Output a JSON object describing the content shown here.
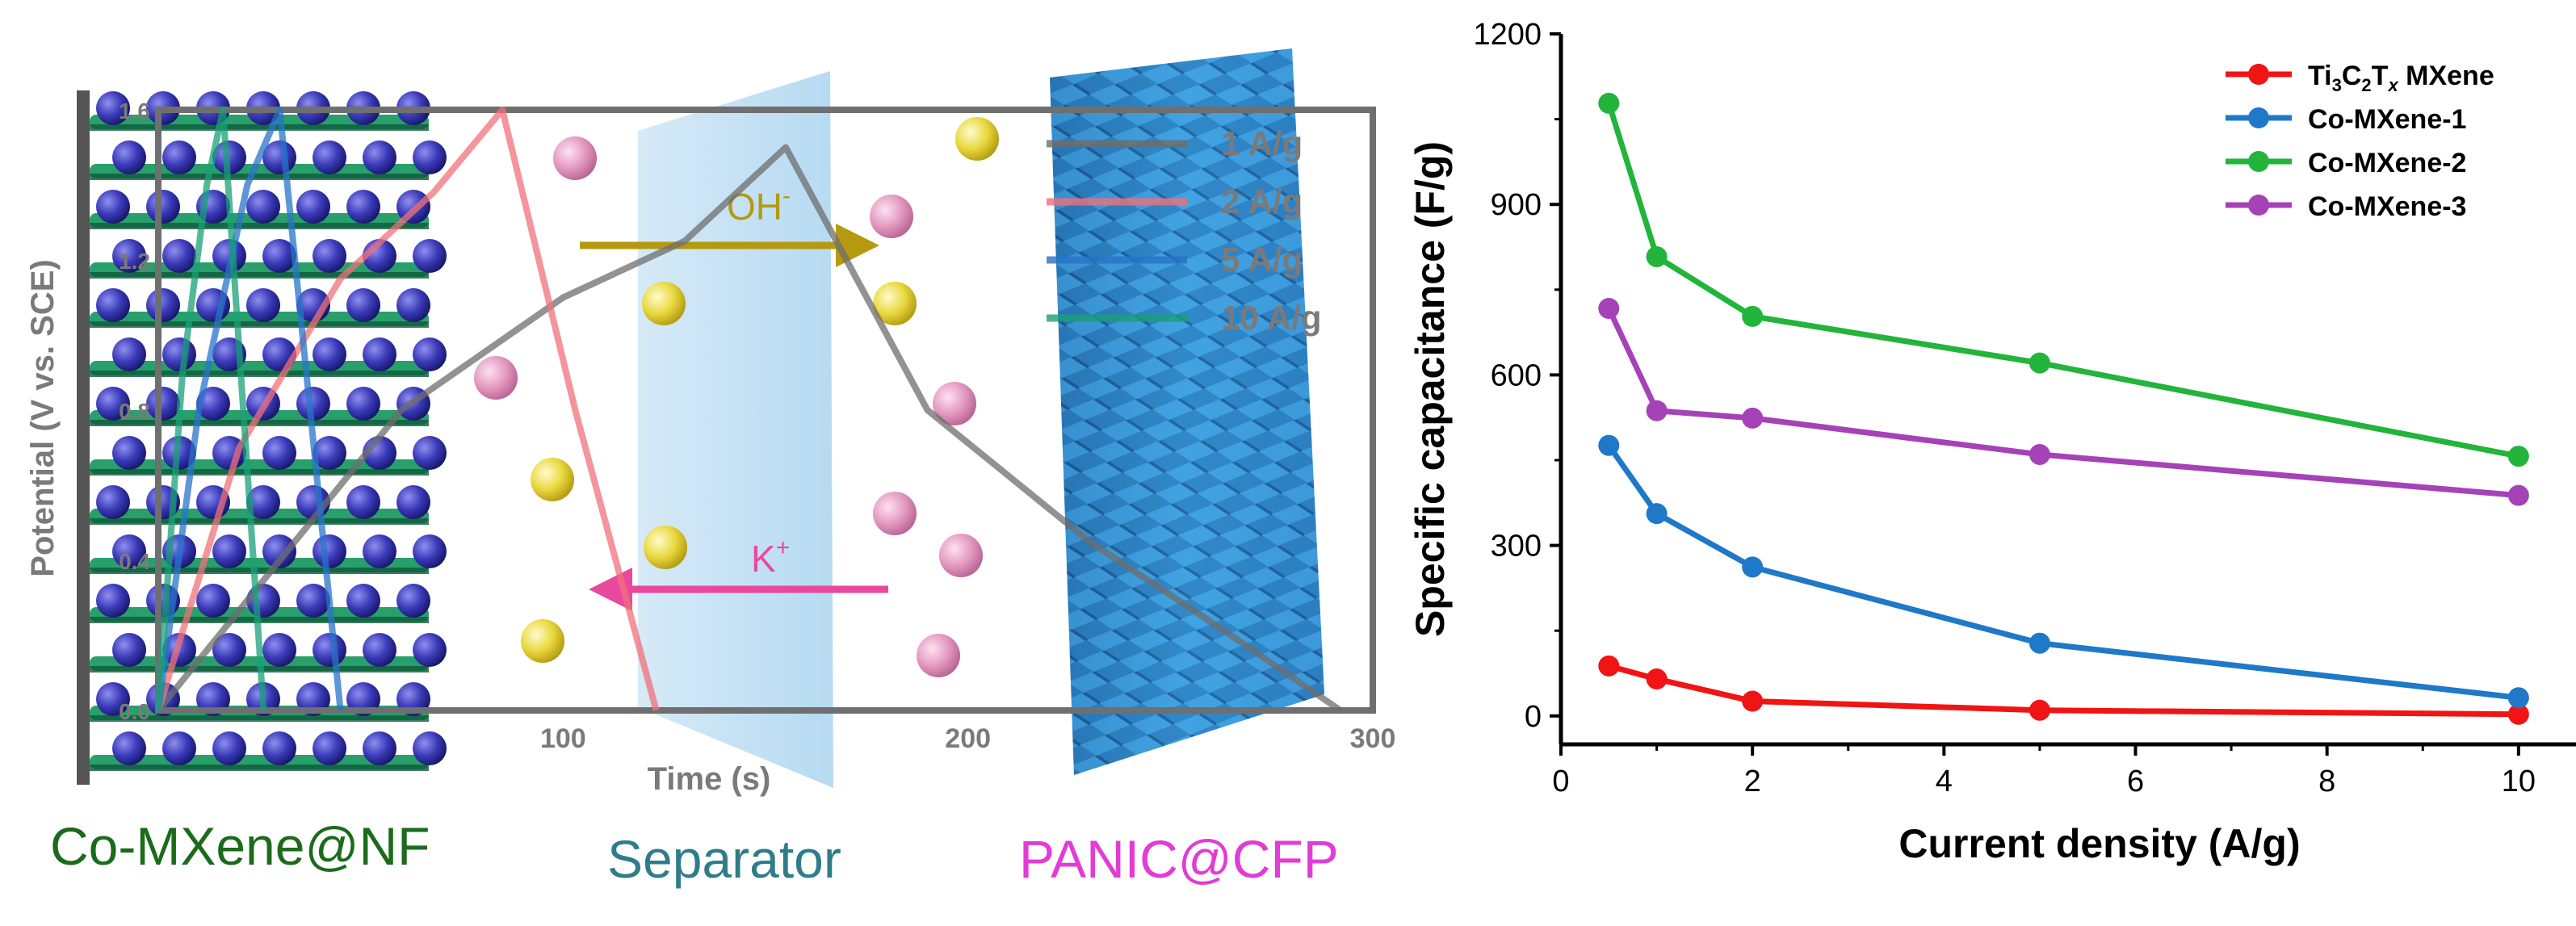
{
  "captions": {
    "anode": "Co-MXene@NF",
    "separator": "Separator",
    "cathode": "PANIC@CFP"
  },
  "ions": {
    "anion": "OH",
    "anion_sup": "-",
    "cation": "K",
    "cation_sup": "+"
  },
  "colors": {
    "anode_green": "#1b6b1b",
    "separator_teal": "#2f7c8a",
    "cathode_magenta": "#e23bd6",
    "ion_arrow_olive": "#b59a10",
    "ion_arrow_pink": "#e8499c"
  },
  "chart_data": [
    {
      "type": "line",
      "xlabel": "Time (s)",
      "ylabel": "Potential (V vs. SCE)",
      "xlim": [
        0,
        300
      ],
      "ylim": [
        0.0,
        1.6
      ],
      "xticks": [
        "100",
        "200",
        "300"
      ],
      "yticks": [
        "0.0",
        "0.4",
        "0.8",
        "1.2",
        "1.6"
      ],
      "legend_position": "top-right",
      "series": [
        {
          "name": "1 A/g",
          "color": "#6d6d6d",
          "x": [
            0,
            60,
            100,
            130,
            155,
            190,
            230,
            265,
            292
          ],
          "y": [
            0.0,
            0.8,
            1.1,
            1.25,
            1.5,
            0.8,
            0.45,
            0.2,
            0.0
          ]
        },
        {
          "name": "2 A/g",
          "color": "#f0707a",
          "x": [
            0,
            20,
            45,
            68,
            85,
            103,
            123
          ],
          "y": [
            0.0,
            0.7,
            1.15,
            1.38,
            1.6,
            0.8,
            0.0
          ]
        },
        {
          "name": "5 A/g",
          "color": "#2874c8",
          "x": [
            0,
            10,
            22,
            30,
            45
          ],
          "y": [
            0.0,
            0.8,
            1.4,
            1.6,
            0.0
          ]
        },
        {
          "name": "10 A/g",
          "color": "#1aa077",
          "x": [
            0,
            6,
            12,
            16,
            26
          ],
          "y": [
            0.0,
            0.9,
            1.4,
            1.6,
            0.0
          ]
        }
      ]
    },
    {
      "type": "line",
      "xlabel": "Current density (A/g)",
      "ylabel": "Specific capacitance (F/g)",
      "xlim": [
        0,
        10.6
      ],
      "ylim": [
        -50,
        1200
      ],
      "xticks": [
        "0",
        "2",
        "4",
        "6",
        "8",
        "10"
      ],
      "yticks": [
        "0",
        "300",
        "600",
        "900",
        "1200"
      ],
      "legend_position": "top-right",
      "categories": [
        0.5,
        1,
        2,
        5,
        10
      ],
      "series": [
        {
          "name": "Ti3C2Tx MXene",
          "name_parts": [
            "Ti",
            "3",
            "C",
            "2",
            "T",
            "x",
            " MXene"
          ],
          "color": "#f01414",
          "values": [
            88,
            65,
            26,
            10,
            3
          ]
        },
        {
          "name": "Co-MXene-1",
          "color": "#1f78c8",
          "values": [
            476,
            356,
            262,
            128,
            32
          ]
        },
        {
          "name": "Co-MXene-2",
          "color": "#23b43b",
          "values": [
            1078,
            808,
            703,
            621,
            457
          ]
        },
        {
          "name": "Co-MXene-3",
          "color": "#a542b8",
          "values": [
            717,
            537,
            524,
            460,
            388
          ]
        }
      ]
    }
  ]
}
